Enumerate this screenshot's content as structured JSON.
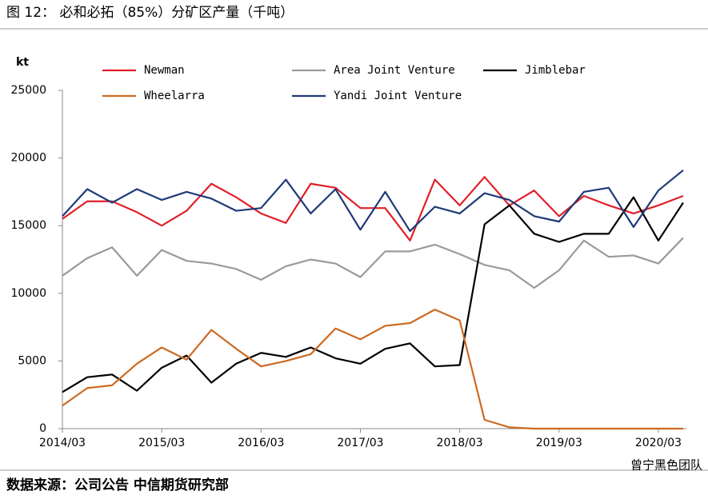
{
  "chart_data": {
    "type": "line",
    "title": "图 12： 必和必拓（85%）分矿区产量（千吨）",
    "y_label": "kt",
    "source": "数据来源：公司公告  中信期货研究部",
    "watermark": "曾宁黑色团队",
    "categories": [
      "2014/03",
      null,
      null,
      null,
      "2015/03",
      null,
      null,
      null,
      "2016/03",
      null,
      null,
      null,
      "2017/03",
      null,
      null,
      null,
      "2018/03",
      null,
      null,
      null,
      "2019/03",
      null,
      null,
      null,
      "2020/03",
      null
    ],
    "series": [
      {
        "name": "Newman",
        "color": "#e0202a",
        "values": [
          15.5,
          16.8,
          16.8,
          16.0,
          15.0,
          16.1,
          18.1,
          17.1,
          15.9,
          15.2,
          18.1,
          17.8,
          16.3,
          16.3,
          13.9,
          18.4,
          16.5,
          18.6,
          16.5,
          17.6,
          15.7,
          17.2,
          16.5,
          15.9,
          16.5,
          17.2
        ]
      },
      {
        "name": "Area Joint Venture",
        "color": "#9a9a9a",
        "values": [
          11.3,
          12.6,
          13.4,
          11.3,
          13.2,
          12.4,
          12.2,
          11.8,
          11.0,
          12.0,
          12.5,
          12.2,
          11.2,
          13.1,
          13.1,
          13.6,
          12.9,
          12.1,
          11.7,
          10.4,
          11.7,
          13.9,
          12.7,
          12.8,
          12.2,
          14.1
        ]
      },
      {
        "name": "Jimblebar",
        "color": "#000000",
        "values": [
          2.7,
          3.8,
          4.0,
          2.8,
          4.5,
          5.4,
          3.4,
          4.8,
          5.6,
          5.3,
          6.0,
          5.2,
          4.8,
          5.9,
          6.3,
          4.6,
          4.7,
          15.1,
          16.5,
          14.4,
          13.8,
          14.4,
          14.4,
          17.1,
          13.9,
          16.7
        ]
      },
      {
        "name": "Wheelarra",
        "color": "#cc6a22",
        "values": [
          1.7,
          3.0,
          3.2,
          4.8,
          6.0,
          5.1,
          7.3,
          5.9,
          4.6,
          5.0,
          5.5,
          7.4,
          6.6,
          7.6,
          7.8,
          8.8,
          8.0,
          0.65,
          0.1,
          0,
          0,
          0,
          0,
          0,
          0,
          0
        ]
      },
      {
        "name": "Yandi Joint Venture",
        "color": "#1f3a78",
        "values": [
          15.7,
          17.7,
          16.7,
          17.7,
          16.9,
          17.5,
          17.0,
          16.1,
          16.3,
          18.4,
          15.9,
          17.7,
          14.7,
          17.5,
          14.6,
          16.4,
          15.9,
          17.4,
          16.9,
          15.7,
          15.3,
          17.5,
          17.8,
          14.9,
          17.6,
          19.1
        ]
      }
    ],
    "ylim": [
      0,
      25
    ],
    "yticks": [
      {
        "value": 0,
        "label": "0"
      },
      {
        "value": 5,
        "label": "5000"
      },
      {
        "value": 10,
        "label": "10000"
      },
      {
        "value": 15,
        "label": "15000"
      },
      {
        "value": 20,
        "label": "20000"
      },
      {
        "value": 25,
        "label": "25000"
      }
    ],
    "grid": false
  }
}
